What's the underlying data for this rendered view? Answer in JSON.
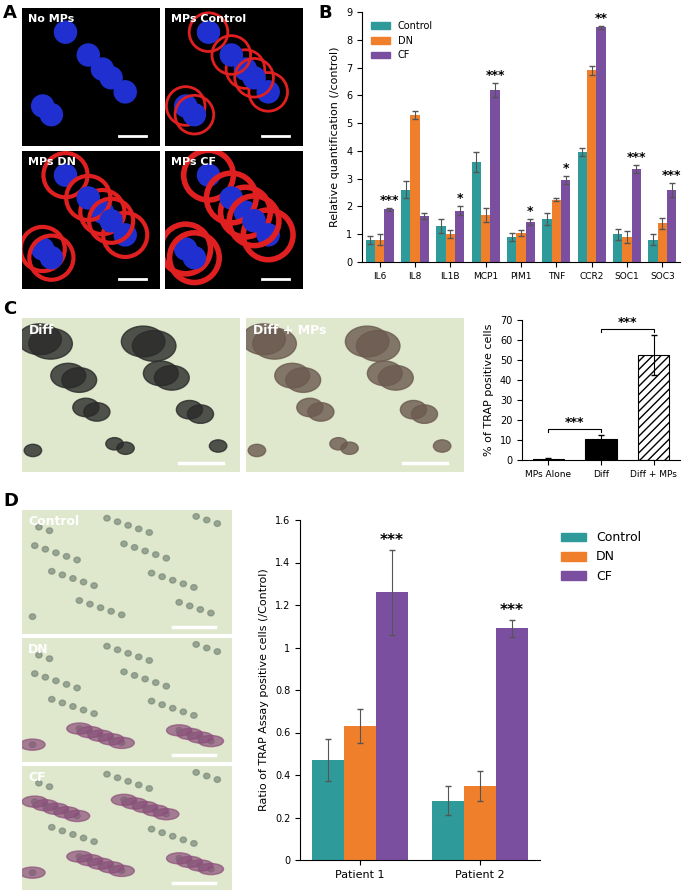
{
  "chart_data": [
    {
      "panel": "B",
      "type": "bar",
      "ylabel": "Relative quantification (/control)",
      "categories": [
        "IL6",
        "IL8",
        "IL1B",
        "MCP1",
        "PIM1",
        "TNF",
        "CCR2",
        "SOC1",
        "SOC3"
      ],
      "series": [
        {
          "name": "Control",
          "color": "#2f9a9a",
          "values": [
            0.8,
            2.6,
            1.3,
            3.6,
            0.9,
            1.55,
            3.95,
            1.0,
            0.8
          ],
          "errors": [
            0.15,
            0.3,
            0.25,
            0.35,
            0.15,
            0.2,
            0.15,
            0.2,
            0.2
          ]
        },
        {
          "name": "DN",
          "color": "#f07f2c",
          "values": [
            0.8,
            5.3,
            1.0,
            1.7,
            1.05,
            2.25,
            6.9,
            0.9,
            1.4
          ],
          "errors": [
            0.2,
            0.15,
            0.15,
            0.25,
            0.1,
            0.05,
            0.15,
            0.2,
            0.2
          ]
        },
        {
          "name": "CF",
          "color": "#7b4fa0",
          "values": [
            1.9,
            1.65,
            1.85,
            6.2,
            1.45,
            2.95,
            8.45,
            3.35,
            2.6
          ],
          "errors": [
            0.05,
            0.1,
            0.15,
            0.25,
            0.1,
            0.15,
            0.05,
            0.15,
            0.25
          ],
          "significance": [
            "***",
            null,
            "*",
            "***",
            "*",
            "*",
            "**",
            "***",
            "***"
          ]
        }
      ],
      "ylim": [
        0,
        9
      ],
      "yticks": [
        0,
        1,
        2,
        3,
        4,
        5,
        6,
        7,
        8,
        9
      ],
      "legend": "upper left"
    },
    {
      "panel": "C",
      "type": "bar",
      "ylabel": "% of TRAP positive cells",
      "categories": [
        "MPs Alone",
        "Diff",
        "Diff + MPs"
      ],
      "values": [
        0.5,
        10.5,
        52.5
      ],
      "errors": [
        0.3,
        2,
        10
      ],
      "colors": [
        "#808080",
        "#000000",
        "#ffffff"
      ],
      "comparisons": [
        {
          "pair": [
            "MPs Alone",
            "Diff"
          ],
          "label": "***"
        },
        {
          "pair": [
            "Diff",
            "Diff + MPs"
          ],
          "label": "***"
        }
      ],
      "ylim": [
        0,
        70
      ],
      "yticks": [
        0,
        10,
        20,
        30,
        40,
        50,
        60,
        70
      ]
    },
    {
      "panel": "D",
      "type": "bar",
      "ylabel": "Ratio of TRAP Assay positive cells (/Control)",
      "categories": [
        "Patient 1",
        "Patient 2"
      ],
      "series": [
        {
          "name": "Control",
          "color": "#2f9a9a",
          "values": [
            0.47,
            0.28
          ],
          "errors": [
            0.1,
            0.07
          ]
        },
        {
          "name": "DN",
          "color": "#f07f2c",
          "values": [
            0.63,
            0.35
          ],
          "errors": [
            0.08,
            0.07
          ]
        },
        {
          "name": "CF",
          "color": "#7b4fa0",
          "values": [
            1.26,
            1.09
          ],
          "errors": [
            0.2,
            0.04
          ],
          "significance": [
            "***",
            "***"
          ]
        }
      ],
      "ylim": [
        0,
        1.6
      ],
      "yticks": [
        0,
        0.2,
        0.4,
        0.6,
        0.8,
        1,
        1.2,
        1.4,
        1.6
      ],
      "legend": "right"
    }
  ],
  "image_panels": [
    {
      "panel": "A",
      "labels": [
        "No MPs",
        "MPs Control",
        "MPs DN",
        "MPs CF"
      ]
    },
    {
      "panel": "C",
      "labels": [
        "Diff",
        "Diff + MPs"
      ]
    },
    {
      "panel": "D",
      "labels": [
        "Control",
        "DN",
        "CF"
      ]
    }
  ]
}
